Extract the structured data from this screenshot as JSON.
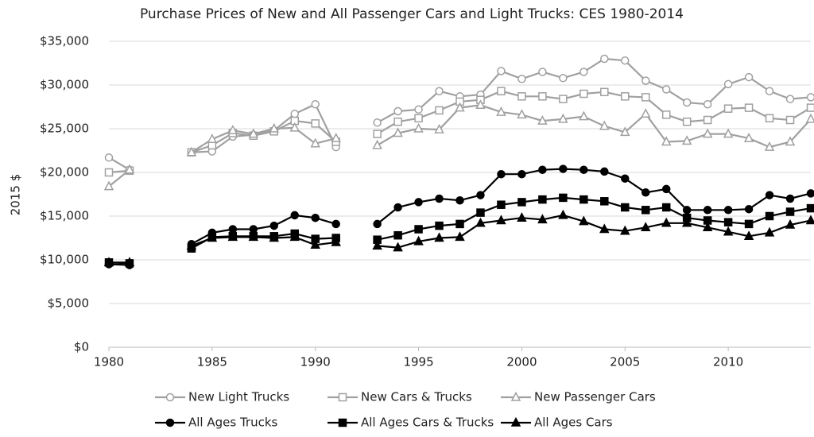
{
  "chart_data": {
    "type": "line",
    "title": "Purchase Prices of New and All Passenger Cars and Light Trucks: CES 1980-2014",
    "y_label": "2015 $",
    "x": [
      1980,
      1981,
      1982,
      1983,
      1984,
      1985,
      1986,
      1987,
      1988,
      1989,
      1990,
      1991,
      1992,
      1993,
      1994,
      1995,
      1996,
      1997,
      1998,
      1999,
      2000,
      2001,
      2002,
      2003,
      2004,
      2005,
      2006,
      2007,
      2008,
      2009,
      2010,
      2011,
      2012,
      2013,
      2014
    ],
    "xlim": [
      1980,
      2014
    ],
    "xticks": [
      1980,
      1985,
      1990,
      1995,
      2000,
      2005,
      2010
    ],
    "ylim": [
      0,
      35000
    ],
    "yticks": [
      {
        "value": 0,
        "label": "$0"
      },
      {
        "value": 5000,
        "label": "$5,000"
      },
      {
        "value": 10000,
        "label": "$10,000"
      },
      {
        "value": 15000,
        "label": "$15,000"
      },
      {
        "value": 20000,
        "label": "$20,000"
      },
      {
        "value": 25000,
        "label": "$25,000"
      },
      {
        "value": 30000,
        "label": "$30,000"
      },
      {
        "value": 35000,
        "label": "$35,000"
      }
    ],
    "grid": true,
    "legend": "bottom",
    "series": [
      {
        "name": "New Light Trucks",
        "color": "#a0a0a0",
        "marker": "circle",
        "filled": false,
        "values": [
          21700,
          20300,
          null,
          null,
          22300,
          22400,
          24100,
          24300,
          24800,
          26700,
          27800,
          22900,
          null,
          25700,
          27000,
          27200,
          29300,
          28700,
          28900,
          31600,
          30700,
          31500,
          30800,
          31500,
          33000,
          32800,
          30500,
          29500,
          28000,
          27800,
          30100,
          30900,
          29300,
          28400,
          28600
        ]
      },
      {
        "name": "New Cars & Trucks",
        "color": "#a0a0a0",
        "marker": "square",
        "filled": false,
        "values": [
          20000,
          20200,
          null,
          null,
          22300,
          23100,
          24500,
          24200,
          24700,
          25900,
          25600,
          23500,
          null,
          24400,
          25800,
          26200,
          27100,
          28100,
          28300,
          29300,
          28700,
          28700,
          28400,
          29000,
          29200,
          28700,
          28600,
          26600,
          25800,
          26000,
          27300,
          27400,
          26200,
          26000,
          27400
        ]
      },
      {
        "name": "New Passenger Cars",
        "color": "#a0a0a0",
        "marker": "triangle",
        "filled": false,
        "values": [
          18400,
          20300,
          null,
          null,
          22300,
          23800,
          24800,
          24400,
          25000,
          25100,
          23300,
          23900,
          null,
          23100,
          24500,
          25000,
          24900,
          27400,
          27700,
          26900,
          26600,
          25900,
          26100,
          26400,
          25300,
          24600,
          26700,
          23500,
          23600,
          24400,
          24400,
          23900,
          22900,
          23500,
          26100
        ]
      },
      {
        "name": "All Ages Trucks",
        "color": "#000000",
        "marker": "circle",
        "filled": true,
        "values": [
          9500,
          9400,
          null,
          null,
          11800,
          13100,
          13500,
          13500,
          13900,
          15100,
          14800,
          14100,
          null,
          14100,
          16000,
          16600,
          17000,
          16800,
          17400,
          19800,
          19800,
          20300,
          20400,
          20300,
          20100,
          19300,
          17700,
          18100,
          15700,
          15700,
          15700,
          15800,
          17400,
          17000,
          17600
        ]
      },
      {
        "name": "All Ages Cars & Trucks",
        "color": "#000000",
        "marker": "square",
        "filled": true,
        "values": [
          9700,
          9600,
          null,
          null,
          11300,
          12600,
          12700,
          12700,
          12700,
          13000,
          12400,
          12500,
          null,
          12300,
          12800,
          13500,
          13900,
          14100,
          15400,
          16300,
          16600,
          16900,
          17100,
          16900,
          16700,
          16000,
          15700,
          16000,
          14800,
          14500,
          14300,
          14100,
          15000,
          15500,
          15900
        ]
      },
      {
        "name": "All Ages Cars",
        "color": "#000000",
        "marker": "triangle",
        "filled": true,
        "values": [
          9700,
          9700,
          null,
          null,
          11600,
          12500,
          12600,
          12600,
          12500,
          12600,
          11700,
          12000,
          null,
          11600,
          11400,
          12100,
          12500,
          12600,
          14200,
          14500,
          14800,
          14600,
          15100,
          14400,
          13500,
          13300,
          13700,
          14200,
          14200,
          13700,
          13200,
          12700,
          13100,
          14000,
          14500
        ]
      }
    ]
  }
}
